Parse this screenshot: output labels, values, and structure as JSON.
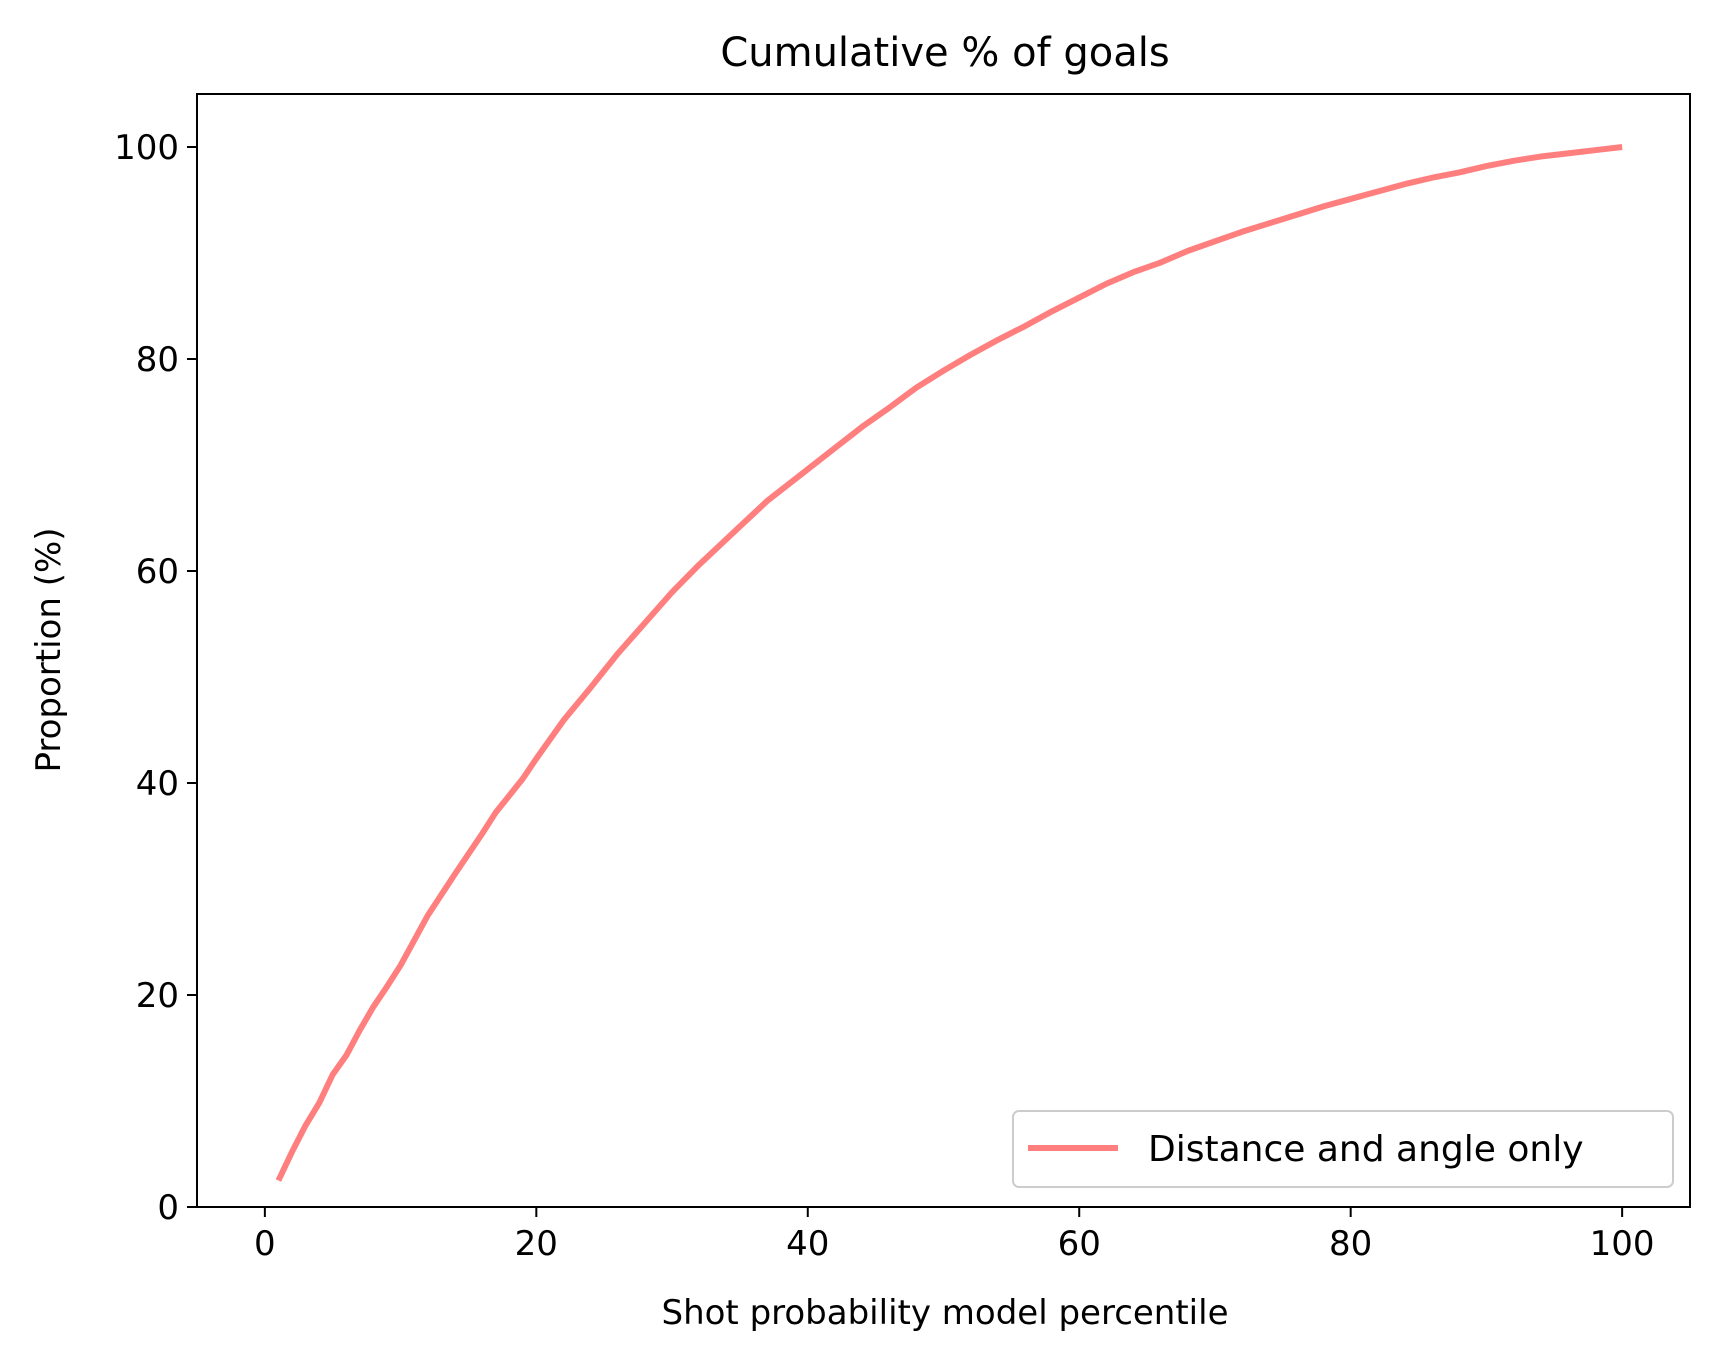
{
  "chart_data": {
    "type": "line",
    "title": "Cumulative % of goals",
    "xlabel": "Shot probability model percentile",
    "ylabel": "Proportion (%)",
    "xlim": [
      -5,
      105
    ],
    "ylim": [
      0,
      105
    ],
    "xticks": [
      0,
      20,
      40,
      60,
      80,
      100
    ],
    "yticks": [
      0,
      20,
      40,
      60,
      80,
      100
    ],
    "grid": false,
    "legend_position": "lower-right",
    "series": [
      {
        "name": "Distance and angle only",
        "color": "#ff7f7f",
        "x": [
          1,
          2,
          3,
          4,
          5,
          6,
          7,
          8,
          9,
          10,
          12,
          14,
          16,
          17,
          18,
          19,
          20,
          22,
          24,
          26,
          28,
          30,
          32,
          35,
          37,
          40,
          42,
          44,
          46,
          48,
          50,
          52,
          54,
          56,
          58,
          60,
          62,
          64,
          66,
          68,
          70,
          72,
          74,
          76,
          78,
          80,
          82,
          84,
          86,
          88,
          90,
          92,
          94,
          96,
          98,
          100
        ],
        "y": [
          2.5,
          5.2,
          7.7,
          9.8,
          12.5,
          14.3,
          16.7,
          18.9,
          20.8,
          22.8,
          27.5,
          31.4,
          35.2,
          37.2,
          38.8,
          40.4,
          42.3,
          45.9,
          49.0,
          52.2,
          55.1,
          58.0,
          60.6,
          64.2,
          66.6,
          69.6,
          71.6,
          73.6,
          75.4,
          77.3,
          78.9,
          80.4,
          81.8,
          83.1,
          84.5,
          85.8,
          87.1,
          88.2,
          89.1,
          90.2,
          91.1,
          92.0,
          92.8,
          93.6,
          94.4,
          95.1,
          95.8,
          96.5,
          97.1,
          97.6,
          98.2,
          98.7,
          99.1,
          99.4,
          99.7,
          100.0
        ]
      }
    ]
  }
}
